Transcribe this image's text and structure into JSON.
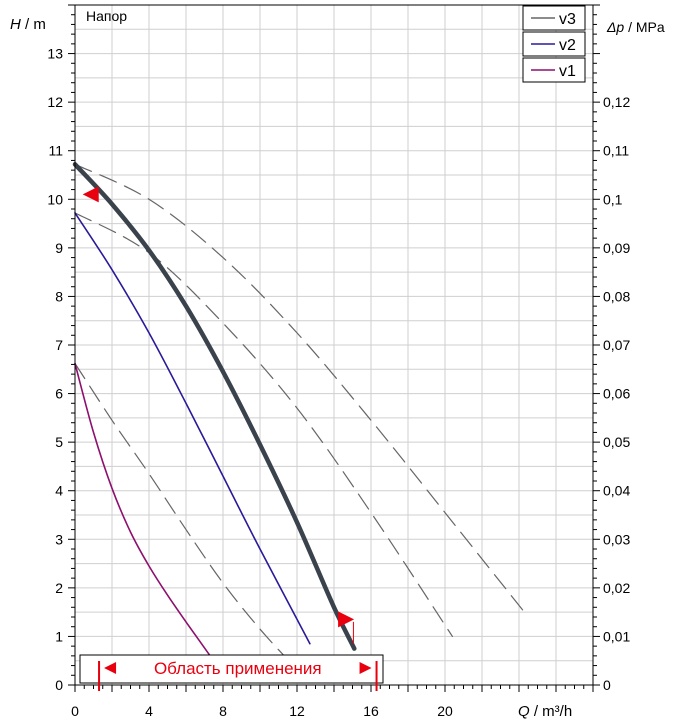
{
  "chart_data": {
    "type": "line",
    "title": "Напор",
    "ylabel_left": {
      "symbol": "H",
      "unit": " / m"
    },
    "ylabel_right": {
      "symbol": "Δp",
      "unit": " / MPa"
    },
    "xlabel": {
      "symbol": "Q",
      "unit": " / m³/h"
    },
    "xlim": [
      0,
      28
    ],
    "ylim": [
      0,
      14
    ],
    "y2lim": [
      0,
      0.14
    ],
    "x_ticks": [
      0,
      4,
      8,
      12,
      16,
      20
    ],
    "y_ticks": [
      0,
      1,
      2,
      3,
      4,
      5,
      6,
      7,
      8,
      9,
      10,
      11,
      12,
      13
    ],
    "y2_ticks": [
      {
        "v": 0,
        "label": "0"
      },
      {
        "v": 0.01,
        "label": "0,01"
      },
      {
        "v": 0.02,
        "label": "0,02"
      },
      {
        "v": 0.03,
        "label": "0,03"
      },
      {
        "v": 0.04,
        "label": "0,04"
      },
      {
        "v": 0.05,
        "label": "0,05"
      },
      {
        "v": 0.06,
        "label": "0,06"
      },
      {
        "v": 0.07,
        "label": "0,07"
      },
      {
        "v": 0.08,
        "label": "0,08"
      },
      {
        "v": 0.09,
        "label": "0,09"
      },
      {
        "v": 0.1,
        "label": "0,1"
      },
      {
        "v": 0.11,
        "label": "0,11"
      },
      {
        "v": 0.12,
        "label": "0,12"
      }
    ],
    "grid": true,
    "legend": {
      "placement": "top-right",
      "entries": [
        "v3",
        "v2",
        "v1"
      ]
    },
    "series": [
      {
        "name": "v3",
        "style": "dashed",
        "color": "#666666",
        "x": [
          0,
          4,
          8,
          12,
          16,
          20,
          24.4
        ],
        "y": [
          10.72,
          10.0,
          8.8,
          7.25,
          5.45,
          3.55,
          1.45
        ]
      },
      {
        "name": "v3",
        "style": "dashed",
        "color": "#666666",
        "x": [
          0,
          4,
          8,
          12,
          16,
          20.4
        ],
        "y": [
          9.72,
          8.9,
          7.45,
          5.7,
          3.55,
          1.0
        ]
      },
      {
        "name": "v3",
        "style": "dashed",
        "color": "#666666",
        "x": [
          0,
          2,
          4,
          6,
          8,
          10,
          11.8
        ],
        "y": [
          6.62,
          5.45,
          4.35,
          3.2,
          2.1,
          1.15,
          0.4
        ]
      },
      {
        "name": "v2",
        "style": "solid",
        "color": "#2a1a9a",
        "x": [
          0,
          2,
          4,
          6,
          8,
          10,
          12.7
        ],
        "y": [
          9.72,
          8.55,
          7.25,
          5.8,
          4.3,
          2.8,
          0.85
        ]
      },
      {
        "name": "v1",
        "style": "solid",
        "color": "#8e0f6e",
        "x": [
          0,
          1,
          2,
          3,
          4,
          5,
          6,
          7.4
        ],
        "y": [
          6.62,
          5.2,
          4.05,
          3.15,
          2.45,
          1.85,
          1.3,
          0.55
        ]
      },
      {
        "name": "",
        "style": "bold",
        "color": "#3a424c",
        "x": [
          0,
          2,
          4,
          6,
          8,
          10,
          12,
          14,
          15.1
        ],
        "y": [
          10.72,
          9.9,
          8.95,
          7.8,
          6.45,
          4.95,
          3.35,
          1.6,
          0.75
        ]
      }
    ],
    "operating_point_markers": [
      {
        "x": 0.85,
        "y": 10.1,
        "direction": "left"
      },
      {
        "x": 14.6,
        "y": 1.35,
        "direction": "right"
      }
    ],
    "annotation": {
      "label": "Область применения",
      "x_from": 1.3,
      "x_to": 16.3,
      "color": "#e8000f"
    }
  }
}
